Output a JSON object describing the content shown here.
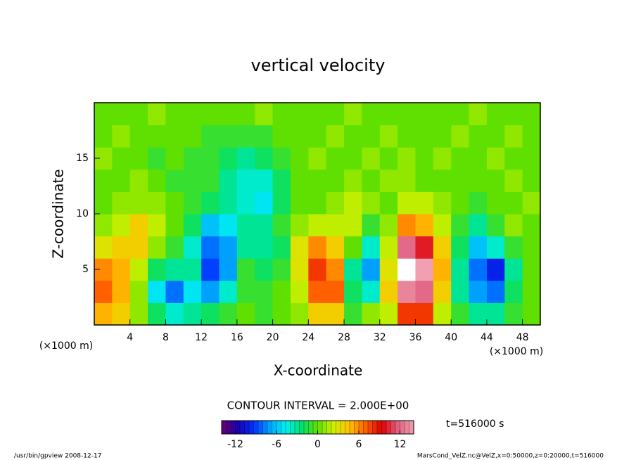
{
  "chart_data": {
    "type": "heatmap",
    "title": "vertical velocity",
    "x_label": "X-coordinate",
    "y_label": "Z-coordinate",
    "x_unit": "(×1000 m)",
    "y_unit": "(×1000 m)",
    "xlim": [
      0,
      50
    ],
    "xticks": [
      4,
      8,
      12,
      16,
      20,
      24,
      28,
      32,
      36,
      40,
      44,
      48
    ],
    "ylim": [
      0,
      20
    ],
    "yticks": [
      5,
      10,
      15
    ],
    "x": [
      1,
      3,
      5,
      7,
      9,
      11,
      13,
      15,
      17,
      19,
      21,
      23,
      25,
      27,
      29,
      31,
      33,
      35,
      37,
      39,
      41,
      43,
      45,
      47,
      49
    ],
    "y": [
      1,
      3,
      5,
      7,
      9,
      11,
      13,
      15,
      17,
      19
    ],
    "values": [
      [
        5,
        4,
        1,
        -2,
        -4,
        -3,
        -2,
        -1,
        0,
        -1,
        0,
        1,
        4,
        4,
        -1,
        1,
        2,
        8,
        8,
        2,
        -1,
        -3,
        -3,
        -1,
        0
      ],
      [
        7,
        5,
        1,
        -5,
        -8,
        -5,
        -7,
        -4,
        -1,
        -1,
        0,
        2,
        7,
        7,
        -2,
        -4,
        4,
        13,
        12,
        4,
        -3,
        -7,
        -8,
        -2,
        0
      ],
      [
        6,
        5,
        2,
        -2,
        -3,
        -3,
        -9,
        -7,
        -1,
        -2,
        -1,
        3,
        8,
        6,
        -3,
        -7,
        3,
        15,
        14,
        5,
        -3,
        -8,
        -10,
        -3,
        0
      ],
      [
        3,
        4,
        4,
        1,
        -1,
        -4,
        -8,
        -7,
        -3,
        -3,
        -2,
        3,
        6,
        4,
        0,
        -4,
        2,
        12,
        10,
        4,
        -2,
        -6,
        -4,
        -1,
        0
      ],
      [
        1,
        2,
        4,
        2,
        0,
        -2,
        -6,
        -5,
        -3,
        -3,
        -1,
        1,
        2,
        2,
        2,
        -1,
        1,
        6,
        5,
        2,
        -1,
        -3,
        -1,
        1,
        0
      ],
      [
        0,
        1,
        1,
        1,
        0,
        -1,
        -2,
        -3,
        -4,
        -5,
        -2,
        0,
        0,
        1,
        2,
        1,
        0,
        2,
        2,
        1,
        0,
        -1,
        0,
        0,
        1
      ],
      [
        0,
        0,
        1,
        0,
        -1,
        -1,
        -1,
        -3,
        -4,
        -4,
        -2,
        0,
        0,
        0,
        1,
        0,
        1,
        1,
        0,
        0,
        0,
        0,
        0,
        1,
        0
      ],
      [
        1,
        0,
        0,
        -1,
        0,
        -1,
        -1,
        -2,
        -3,
        -2,
        -1,
        0,
        1,
        0,
        0,
        1,
        0,
        1,
        0,
        1,
        0,
        0,
        1,
        0,
        0
      ],
      [
        0,
        1,
        0,
        0,
        0,
        0,
        -1,
        -1,
        -1,
        -1,
        0,
        0,
        0,
        1,
        0,
        0,
        1,
        0,
        0,
        0,
        1,
        0,
        0,
        1,
        0
      ],
      [
        0,
        0,
        0,
        1,
        0,
        0,
        0,
        0,
        0,
        1,
        0,
        0,
        0,
        0,
        1,
        0,
        0,
        0,
        0,
        0,
        0,
        1,
        0,
        0,
        0
      ]
    ],
    "clim": [
      -14,
      14
    ],
    "cticks": [
      -12,
      -6,
      0,
      6,
      12
    ],
    "colormap": [
      "#6a006a",
      "#1a00b0",
      "#0030ff",
      "#00a0ff",
      "#00f0f0",
      "#00e070",
      "#60e000",
      "#d0f000",
      "#ffc000",
      "#ff6000",
      "#e00000",
      "#e06080",
      "#f0a0b0"
    ],
    "over_color": "#ffffff",
    "contour_interval": "CONTOUR INTERVAL = 2.000E+00",
    "time_label": "t=516000 s",
    "footer_left": "/usr/bin/gpview  2008-12-17",
    "footer_right": "MarsCond_VelZ.nc@VelZ,x=0:50000,z=0:20000,t=516000"
  }
}
